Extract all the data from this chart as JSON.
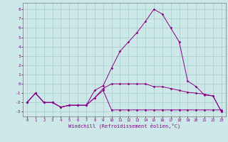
{
  "xlabel": "Windchill (Refroidissement éolien,°C)",
  "background_color": "#cce8e8",
  "grid_color": "#aacccc",
  "line_color": "#880088",
  "x_hours": [
    0,
    1,
    2,
    3,
    4,
    5,
    6,
    7,
    8,
    9,
    10,
    11,
    12,
    13,
    14,
    15,
    16,
    17,
    18,
    19,
    20,
    21,
    22,
    23
  ],
  "series1": [
    -2,
    -1,
    -2,
    -2,
    -2.5,
    -2.3,
    -2.3,
    -2.3,
    -1.5,
    -0.7,
    -2.8,
    -2.8,
    -2.8,
    -2.8,
    -2.8,
    -2.8,
    -2.8,
    -2.8,
    -2.8,
    -2.8,
    -2.8,
    -2.8,
    -2.8,
    -2.8
  ],
  "series2": [
    -2,
    -1,
    -2,
    -2,
    -2.5,
    -2.3,
    -2.3,
    -2.3,
    -1.5,
    -0.5,
    0,
    0,
    0,
    0,
    0,
    -0.3,
    -0.3,
    -0.5,
    -0.7,
    -0.9,
    -1,
    -1.1,
    -1.3,
    -3
  ],
  "series3": [
    -2,
    -1,
    -2,
    -2,
    -2.5,
    -2.3,
    -2.3,
    -2.3,
    -0.7,
    -0.2,
    1.7,
    3.5,
    4.5,
    5.5,
    6.7,
    8,
    7.5,
    6,
    4.5,
    0.3,
    -0.3,
    -1.2,
    -1.3,
    -3
  ],
  "ylim": [
    -3.5,
    8.7
  ],
  "xlim": [
    -0.5,
    23.5
  ],
  "yticks": [
    -3,
    -2,
    -1,
    0,
    1,
    2,
    3,
    4,
    5,
    6,
    7,
    8
  ],
  "xticks": [
    0,
    1,
    2,
    3,
    4,
    5,
    6,
    7,
    8,
    9,
    10,
    11,
    12,
    13,
    14,
    15,
    16,
    17,
    18,
    19,
    20,
    21,
    22,
    23
  ]
}
